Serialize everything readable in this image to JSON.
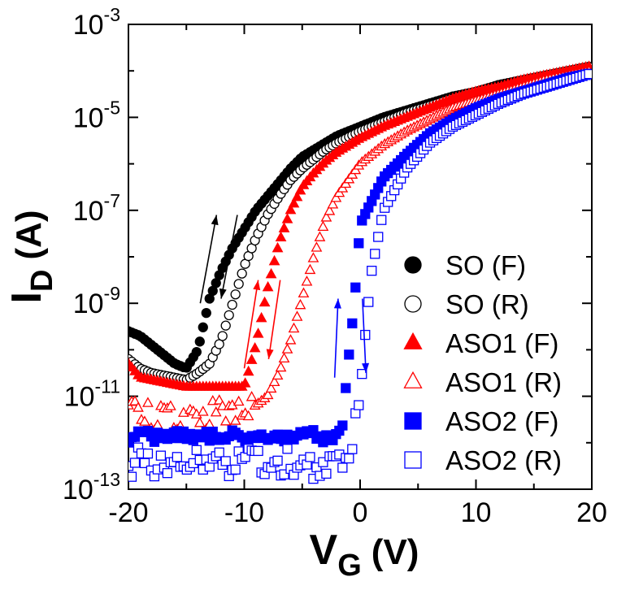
{
  "chart_data": {
    "type": "scatter",
    "title": "",
    "xlabel": {
      "main": "V",
      "sub": "G",
      "unit": "(V)"
    },
    "ylabel": {
      "main": "I",
      "sub": "D",
      "unit": "(A)"
    },
    "xlim": [
      -20,
      20
    ],
    "ylim_log10": [
      -13,
      -3
    ],
    "y_scale": "log",
    "x_ticks": [
      -20,
      -10,
      0,
      10,
      20
    ],
    "x_tick_labels": [
      "-20",
      "-10",
      "0",
      "10",
      "20"
    ],
    "y_ticks_log10": [
      -13,
      -11,
      -9,
      -7,
      -5,
      -3
    ],
    "y_tick_labels": [
      {
        "base": "10",
        "exp": "-13"
      },
      {
        "base": "10",
        "exp": "-11"
      },
      {
        "base": "10",
        "exp": "-9"
      },
      {
        "base": "10",
        "exp": "-7"
      },
      {
        "base": "10",
        "exp": "-5"
      },
      {
        "base": "10",
        "exp": "-3"
      }
    ],
    "legend_position": "right",
    "series": [
      {
        "name": "SO (F)",
        "color": "#000000",
        "marker": "circle",
        "filled": true,
        "x": [
          -20,
          -19,
          -18,
          -17,
          -16,
          -15,
          -14,
          -13,
          -12,
          -11,
          -10,
          -9,
          -8,
          -7,
          -6,
          -5,
          -4,
          -3,
          -2,
          0,
          2,
          4,
          6,
          8,
          10,
          12,
          14,
          16,
          18,
          20
        ],
        "log10_y": [
          -9.6,
          -9.7,
          -9.9,
          -10.1,
          -10.3,
          -10.4,
          -10.0,
          -8.9,
          -8.3,
          -7.8,
          -7.4,
          -7.0,
          -6.7,
          -6.4,
          -6.1,
          -5.85,
          -5.7,
          -5.55,
          -5.4,
          -5.2,
          -5.0,
          -4.85,
          -4.7,
          -4.55,
          -4.45,
          -4.3,
          -4.2,
          -4.1,
          -4.0,
          -3.9
        ]
      },
      {
        "name": "SO (R)",
        "color": "#000000",
        "marker": "circle",
        "filled": false,
        "x": [
          -20,
          -19,
          -18,
          -17,
          -16,
          -15,
          -14,
          -13,
          -12,
          -11,
          -10,
          -9,
          -8,
          -7,
          -6,
          -5,
          -4,
          -3,
          -2,
          0,
          2,
          4,
          6,
          8,
          10,
          12,
          14,
          16,
          18,
          20
        ],
        "log10_y": [
          -10.2,
          -10.4,
          -10.5,
          -10.55,
          -10.6,
          -10.65,
          -10.5,
          -10.3,
          -9.8,
          -9.0,
          -8.2,
          -7.6,
          -7.1,
          -6.7,
          -6.35,
          -6.1,
          -5.9,
          -5.7,
          -5.55,
          -5.3,
          -5.1,
          -4.9,
          -4.75,
          -4.6,
          -4.45,
          -4.35,
          -4.25,
          -4.1,
          -4.0,
          -3.9
        ]
      },
      {
        "name": "ASO1 (F)",
        "color": "#ff0000",
        "marker": "triangle",
        "filled": true,
        "x": [
          -20,
          -19,
          -18,
          -17,
          -16,
          -15,
          -14,
          -13,
          -12,
          -11,
          -10,
          -9,
          -8,
          -7,
          -6,
          -5,
          -4,
          -3,
          -2,
          0,
          2,
          4,
          6,
          8,
          10,
          12,
          14,
          16,
          18,
          20
        ],
        "log10_y": [
          -10.3,
          -10.6,
          -10.65,
          -10.7,
          -10.75,
          -10.8,
          -10.8,
          -10.8,
          -10.8,
          -10.8,
          -10.8,
          -9.9,
          -8.7,
          -7.7,
          -7.0,
          -6.5,
          -6.2,
          -5.95,
          -5.75,
          -5.45,
          -5.2,
          -5.0,
          -4.8,
          -4.6,
          -4.45,
          -4.35,
          -4.2,
          -4.1,
          -4.0,
          -3.9
        ]
      },
      {
        "name": "ASO1 (R)",
        "color": "#ff0000",
        "marker": "triangle",
        "filled": false,
        "x": [
          -20,
          -19,
          -18,
          -17,
          -16,
          -15,
          -14,
          -13,
          -12,
          -11,
          -10,
          -9,
          -8,
          -7,
          -6,
          -5,
          -4,
          -3,
          -2,
          0,
          2,
          4,
          6,
          8,
          10,
          12,
          14,
          16,
          18,
          20
        ],
        "log10_y": [
          -11.3,
          -11.4,
          -11.45,
          -11.5,
          -11.5,
          -11.5,
          -11.45,
          -11.4,
          -11.35,
          -11.3,
          -11.3,
          -11.2,
          -11.0,
          -10.5,
          -9.8,
          -8.9,
          -8.0,
          -7.2,
          -6.7,
          -6.0,
          -5.6,
          -5.3,
          -5.05,
          -4.8,
          -4.65,
          -4.5,
          -4.35,
          -4.2,
          -4.1,
          -4.0
        ]
      },
      {
        "name": "ASO2 (F)",
        "color": "#0000ff",
        "marker": "square",
        "filled": true,
        "x": [
          -20,
          -19,
          -18,
          -17,
          -16,
          -15,
          -14,
          -13,
          -12,
          -11,
          -10,
          -9,
          -8,
          -7,
          -6,
          -5,
          -4,
          -3,
          -2,
          -1.5,
          -1,
          -0.5,
          0,
          2,
          4,
          6,
          8,
          10,
          12,
          14,
          16,
          18,
          20
        ],
        "log10_y": [
          -11.9,
          -11.8,
          -11.85,
          -11.9,
          -11.8,
          -11.9,
          -11.85,
          -11.9,
          -11.8,
          -11.85,
          -11.9,
          -11.8,
          -11.85,
          -11.9,
          -11.85,
          -11.8,
          -11.85,
          -11.9,
          -11.8,
          -11.5,
          -10.2,
          -9.0,
          -7.3,
          -6.3,
          -5.8,
          -5.35,
          -5.05,
          -4.8,
          -4.6,
          -4.45,
          -4.3,
          -4.15,
          -4.05
        ]
      },
      {
        "name": "ASO2 (R)",
        "color": "#0000ff",
        "marker": "square",
        "filled": false,
        "x": [
          -20,
          -19,
          -18,
          -17,
          -16,
          -15,
          -14,
          -13,
          -12,
          -11,
          -10,
          -9,
          -8,
          -7,
          -6,
          -5,
          -4,
          -3,
          -2,
          -1,
          0,
          0.5,
          1,
          2,
          4,
          6,
          8,
          10,
          12,
          14,
          16,
          18,
          20
        ],
        "log10_y": [
          -12.5,
          -12.2,
          -12.6,
          -12.3,
          -12.4,
          -12.7,
          -12.3,
          -12.5,
          -12.2,
          -12.6,
          -12.4,
          -12.3,
          -12.5,
          -12.6,
          -12.4,
          -12.3,
          -12.5,
          -12.6,
          -12.5,
          -12.6,
          -11.0,
          -9.5,
          -8.3,
          -7.0,
          -6.1,
          -5.55,
          -5.2,
          -4.95,
          -4.7,
          -4.5,
          -4.35,
          -4.2,
          -4.05
        ]
      }
    ],
    "annotations": [
      {
        "type": "arrow",
        "direction": "up",
        "color": "#000000",
        "from": [
          -13.8,
          -9.0
        ],
        "to": [
          -12.4,
          -7.1
        ]
      },
      {
        "type": "arrow",
        "direction": "down",
        "color": "#000000",
        "from": [
          -10.6,
          -7.1
        ],
        "to": [
          -12.0,
          -8.9
        ]
      },
      {
        "type": "arrow",
        "direction": "up",
        "color": "#ff0000",
        "from": [
          -10.0,
          -10.4
        ],
        "to": [
          -8.8,
          -8.5
        ]
      },
      {
        "type": "arrow",
        "direction": "down",
        "color": "#ff0000",
        "from": [
          -6.9,
          -8.5
        ],
        "to": [
          -7.9,
          -10.2
        ]
      },
      {
        "type": "arrow",
        "direction": "up",
        "color": "#0000ff",
        "from": [
          -2.2,
          -10.6
        ],
        "to": [
          -1.9,
          -8.9
        ]
      },
      {
        "type": "arrow",
        "direction": "down",
        "color": "#0000ff",
        "from": [
          0.2,
          -8.9
        ],
        "to": [
          0.5,
          -10.5
        ]
      }
    ]
  }
}
